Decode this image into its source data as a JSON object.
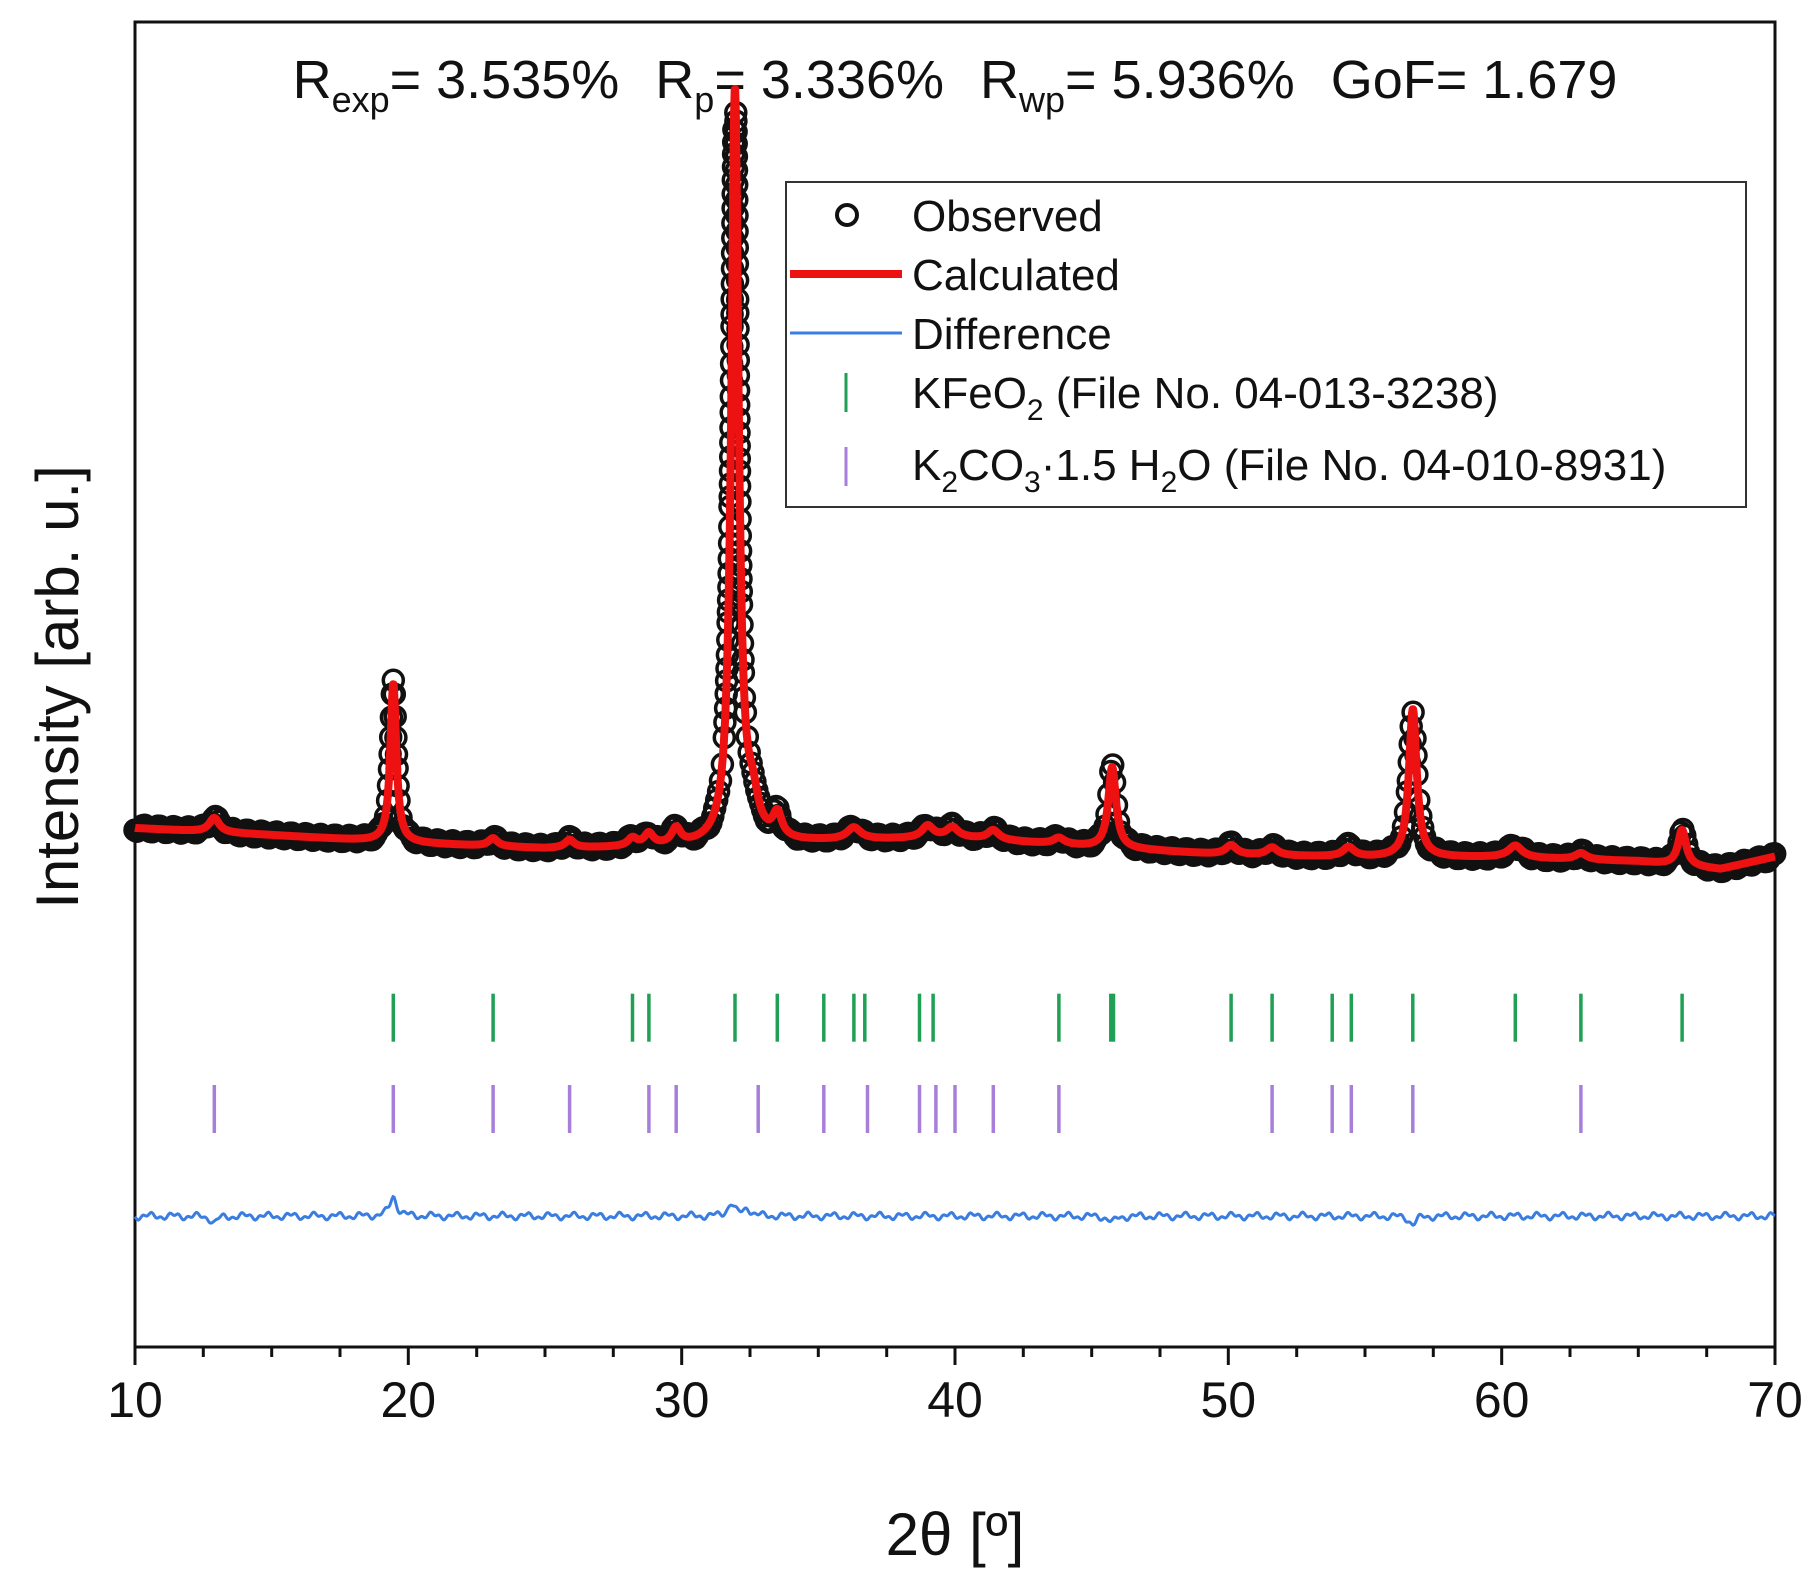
{
  "chart_data": {
    "type": "line",
    "title": {
      "r_exp_label": "R",
      "r_exp_sub": "exp",
      "r_exp_value": "= 3.535%",
      "r_p_label": "R",
      "r_p_sub": "p",
      "r_p_value": "= 3.336%",
      "r_wp_label": "R",
      "r_wp_sub": "wp",
      "r_wp_value": "= 5.936%",
      "gof": "GoF= 1.679"
    },
    "xlabel": "2θ [º]",
    "ylabel": "Intensity [arb. u.]",
    "xlim": [
      10,
      70
    ],
    "ylim": [
      -0.62,
      1.05
    ],
    "x_ticks": [
      10,
      20,
      30,
      40,
      50,
      60,
      70
    ],
    "x_tick_labels": [
      "10",
      "20",
      "30",
      "40",
      "50",
      "60",
      "70"
    ],
    "legend": {
      "position": "top-right",
      "observed": "Observed",
      "calculated": "Calculated",
      "difference": "Difference",
      "kfeo2": {
        "p1": "KFeO",
        "s1": "2",
        "p2": " (File No. 04-013-3238)"
      },
      "k2co3": {
        "p1": "K",
        "s1": "2",
        "p2": "CO",
        "s2": "3",
        "p3": "·1.5 H",
        "s3": "2",
        "p4": "O (File No. 04-010-8931)"
      }
    },
    "colors": {
      "observed": "#111111",
      "calculated": "#ee1111",
      "difference": "#3a7de0",
      "kfeo2": "#1fa055",
      "k2co3": "#a77fdb"
    },
    "baseline": {
      "x": [
        10,
        15,
        20,
        25,
        30,
        35,
        40,
        45,
        50,
        55,
        60,
        65,
        68,
        70
      ],
      "y": [
        0.034,
        0.025,
        0.015,
        0.008,
        0.01,
        0.017,
        0.022,
        0.01,
        0.0,
        -0.003,
        -0.003,
        -0.008,
        -0.018,
        -0.002
      ]
    },
    "peaks": [
      {
        "center": 12.9,
        "height": 0.018,
        "width": 0.22
      },
      {
        "center": 19.45,
        "height": 0.2,
        "width": 0.13
      },
      {
        "center": 23.1,
        "height": 0.01,
        "width": 0.2
      },
      {
        "center": 25.9,
        "height": 0.01,
        "width": 0.2
      },
      {
        "center": 28.2,
        "height": 0.01,
        "width": 0.2
      },
      {
        "center": 28.8,
        "height": 0.015,
        "width": 0.2
      },
      {
        "center": 29.8,
        "height": 0.02,
        "width": 0.2
      },
      {
        "center": 31.95,
        "height": 0.95,
        "width": 0.16
      },
      {
        "center": 32.6,
        "height": 0.04,
        "width": 0.25
      },
      {
        "center": 33.5,
        "height": 0.03,
        "width": 0.2
      },
      {
        "center": 36.3,
        "height": 0.015,
        "width": 0.3
      },
      {
        "center": 39.0,
        "height": 0.015,
        "width": 0.25
      },
      {
        "center": 39.9,
        "height": 0.012,
        "width": 0.25
      },
      {
        "center": 41.4,
        "height": 0.012,
        "width": 0.25
      },
      {
        "center": 43.8,
        "height": 0.008,
        "width": 0.25
      },
      {
        "center": 45.75,
        "height": 0.102,
        "width": 0.17
      },
      {
        "center": 50.1,
        "height": 0.012,
        "width": 0.25
      },
      {
        "center": 51.6,
        "height": 0.01,
        "width": 0.25
      },
      {
        "center": 54.4,
        "height": 0.012,
        "width": 0.25
      },
      {
        "center": 56.75,
        "height": 0.187,
        "width": 0.17
      },
      {
        "center": 60.5,
        "height": 0.015,
        "width": 0.3
      },
      {
        "center": 62.9,
        "height": 0.008,
        "width": 0.25
      },
      {
        "center": 66.6,
        "height": 0.045,
        "width": 0.18
      }
    ],
    "difference_offset": -0.455,
    "difference_features": [
      {
        "center": 12.9,
        "height": -0.008,
        "width": 0.15
      },
      {
        "center": 19.45,
        "height": 0.025,
        "width": 0.15
      },
      {
        "center": 31.8,
        "height": 0.016,
        "width": 0.15
      },
      {
        "center": 32.4,
        "height": 0.01,
        "width": 0.15
      },
      {
        "center": 45.75,
        "height": -0.008,
        "width": 0.15
      },
      {
        "center": 56.75,
        "height": -0.01,
        "width": 0.15
      }
    ],
    "kfeo2_reflections": [
      19.45,
      23.1,
      28.2,
      28.8,
      31.95,
      33.5,
      35.2,
      36.3,
      36.7,
      38.7,
      39.2,
      43.8,
      45.7,
      45.8,
      50.1,
      51.6,
      53.8,
      54.5,
      56.75,
      60.5,
      62.9,
      66.6
    ],
    "k2co3_reflections": [
      12.9,
      19.45,
      23.1,
      25.9,
      28.8,
      29.8,
      32.8,
      35.2,
      36.8,
      38.7,
      39.3,
      40.0,
      41.4,
      43.8,
      51.6,
      53.8,
      54.5,
      56.75,
      62.9
    ],
    "kfeo2_tick_y": -0.205,
    "k2co3_tick_y": -0.32
  }
}
